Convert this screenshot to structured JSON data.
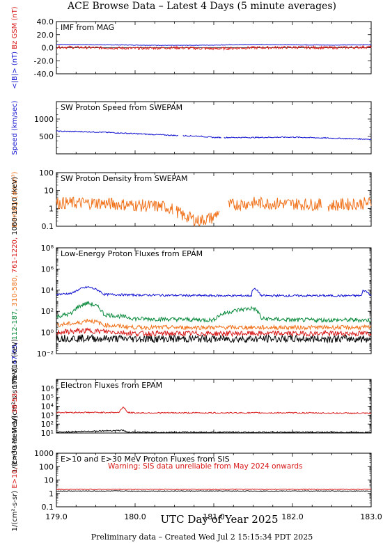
{
  "page_title": "ACE Browse Data – Latest 4 Days (5 minute averages)",
  "footer": "Preliminary data – Created Wed Jul  2 15:15:34 PDT 2025",
  "x_axis": {
    "label": "UTC Day of Year 2025",
    "range": [
      179.0,
      183.0
    ],
    "ticks": [
      "179.0",
      "180.0",
      "181.0",
      "182.0",
      "183.0"
    ]
  },
  "colors": {
    "blue": "#1010d0",
    "red": "#d81818",
    "green": "#0a8a3c",
    "orange": "#f07018",
    "black": "#000000"
  },
  "chart_data": [
    {
      "type": "line",
      "title": "IMF from MAG",
      "ylabel_parts": [
        {
          "text": "<|B|>",
          "units": "(nT)",
          "color": "#1010d0"
        },
        {
          "text": "Bz GSM",
          "units": "(nT)",
          "color": "#d81818"
        }
      ],
      "yscale": "linear",
      "ylim": [
        -40,
        40
      ],
      "yticks": [
        "-40.0",
        "-20.0",
        "0.0",
        "20.0",
        "40.0"
      ],
      "zero_line": true,
      "series": [
        {
          "name": "<|B|>",
          "color": "#1010d0",
          "x": [
            179.0,
            179.5,
            180.0,
            180.5,
            181.0,
            181.5,
            182.0,
            182.5,
            183.0
          ],
          "values": [
            5,
            4.5,
            4,
            3.5,
            4,
            5,
            4.5,
            4,
            4.5
          ],
          "noise": 0.4
        },
        {
          "name": "Bz GSM",
          "color": "#d81818",
          "x": [
            179.0,
            179.5,
            180.0,
            180.5,
            181.0,
            181.5,
            182.0,
            182.5,
            183.0
          ],
          "values": [
            1,
            0,
            -1,
            0,
            -1.5,
            0,
            0.5,
            0,
            1
          ],
          "noise": 2
        }
      ]
    },
    {
      "type": "line",
      "title": "SW Proton Speed from SWEPAM",
      "ylabel_parts": [
        {
          "text": "Speed",
          "units": "(km/sec)",
          "color": "#1010d0"
        }
      ],
      "yscale": "linear",
      "ylim": [
        0,
        1500
      ],
      "yticks": [
        "500",
        "1000"
      ],
      "ytick_values": [
        500,
        1000
      ],
      "series": [
        {
          "name": "Speed",
          "color": "#1010d0",
          "x": [
            179.0,
            179.3,
            179.6,
            180.0,
            180.5,
            180.8,
            181.0,
            181.5,
            182.0,
            182.5,
            183.0
          ],
          "values": [
            650,
            640,
            620,
            580,
            530,
            510,
            470,
            470,
            480,
            450,
            420
          ],
          "noise": 15,
          "gaps": [
            [
              180.55,
              180.6
            ],
            [
              181.1,
              181.13
            ]
          ]
        }
      ]
    },
    {
      "type": "line",
      "title": "SW Proton Density from SWEPAM",
      "ylabel_parts": [
        {
          "text": "Density",
          "units": "(#/cm³)",
          "color": "#f07018"
        }
      ],
      "yscale": "log",
      "ylim": [
        0.1,
        100
      ],
      "yticks": [
        "0.1",
        "1",
        "10",
        "100"
      ],
      "ytick_values": [
        0.1,
        1,
        10,
        100
      ],
      "series": [
        {
          "name": "Density",
          "color": "#f07018",
          "x": [
            179.0,
            179.5,
            180.0,
            180.4,
            180.6,
            180.8,
            181.0,
            181.2,
            181.5,
            182.0,
            182.5,
            183.0
          ],
          "values": [
            2.0,
            2.0,
            1.5,
            1.2,
            0.4,
            0.2,
            0.3,
            1.5,
            2.0,
            1.8,
            1.5,
            2.0
          ],
          "noise": 0.35,
          "gaps": [
            [
              180.48,
              180.52
            ],
            [
              181.07,
              181.18
            ],
            [
              182.38,
              182.45
            ]
          ]
        }
      ]
    },
    {
      "type": "line",
      "title": "Low-Energy Proton Fluxes from EPAM",
      "ylabel_parts": [
        {
          "text": "1/(cm²-s-sr-MeV)",
          "color": "#000000"
        },
        {
          "text": "47-65,",
          "color": "#1010d0"
        },
        {
          "text": "112-187,",
          "color": "#0a8a3c"
        },
        {
          "text": "310-580,",
          "color": "#f07018"
        },
        {
          "text": "761-1220,",
          "color": "#d81818"
        },
        {
          "text": "1060-1910 (keV)",
          "color": "#000000"
        }
      ],
      "yscale": "log",
      "ylim": [
        0.01,
        100000000
      ],
      "yticks": [
        "10⁻²",
        "10⁰",
        "10²",
        "10⁴",
        "10⁶",
        "10⁸"
      ],
      "ytick_values": [
        0.01,
        1,
        100,
        10000,
        1000000,
        100000000
      ],
      "series": [
        {
          "name": "47-65 keV",
          "color": "#1010d0",
          "x": [
            179.0,
            179.2,
            179.4,
            179.6,
            180.0,
            181.0,
            181.48,
            181.5,
            181.6,
            182.0,
            182.88,
            182.9,
            183.0
          ],
          "values": [
            4000,
            5000,
            20000,
            4000,
            3500,
            3000,
            3000,
            15000,
            3000,
            3000,
            3000,
            10000,
            3000
          ],
          "noise": 0.1
        },
        {
          "name": "112-187 keV",
          "color": "#0a8a3c",
          "x": [
            179.0,
            179.2,
            179.4,
            179.6,
            180.0,
            181.0,
            181.5,
            181.6,
            182.0,
            183.0
          ],
          "values": [
            30,
            60,
            600,
            50,
            20,
            15,
            200,
            20,
            15,
            15
          ],
          "noise": 0.2
        },
        {
          "name": "310-580 keV",
          "color": "#f07018",
          "x": [
            179.0,
            179.3,
            179.4,
            179.6,
            180.0,
            181.0,
            182.0,
            183.0
          ],
          "values": [
            5,
            8,
            15,
            5,
            3,
            3,
            3,
            3
          ],
          "noise": 0.2
        },
        {
          "name": "761-1220 keV",
          "color": "#d81818",
          "x": [
            179.0,
            179.4,
            180.0,
            181.0,
            182.0,
            183.0
          ],
          "values": [
            1.0,
            1.5,
            0.8,
            0.8,
            0.8,
            0.8
          ],
          "noise": 0.25
        },
        {
          "name": "1060-1910 keV",
          "color": "#000000",
          "x": [
            179.0,
            180.0,
            181.0,
            182.0,
            183.0
          ],
          "values": [
            0.3,
            0.25,
            0.25,
            0.25,
            0.25
          ],
          "noise": 0.35
        }
      ]
    },
    {
      "type": "line",
      "title": "Electron Fluxes from EPAM",
      "ylabel_parts": [
        {
          "text": "1/(cm²-s-sr-MeV)",
          "color": "#000000"
        },
        {
          "text": "38-53,",
          "color": "#d81818"
        },
        {
          "text": "175-315 (keV)",
          "color": "#000000"
        }
      ],
      "yscale": "log",
      "ylim": [
        10,
        10000000
      ],
      "yticks": [
        "10¹",
        "10²",
        "10³",
        "10⁴",
        "10⁵",
        "10⁶"
      ],
      "ytick_values": [
        10,
        100,
        1000,
        10000,
        100000,
        1000000
      ],
      "series": [
        {
          "name": "38-53 keV",
          "color": "#d81818",
          "x": [
            179.0,
            179.8,
            179.85,
            179.9,
            180.0,
            181.0,
            182.0,
            183.0
          ],
          "values": [
            2000,
            2000,
            8000,
            2000,
            1800,
            1800,
            1800,
            1600
          ],
          "noise": 0.07
        },
        {
          "name": "175-315 keV",
          "color": "#000000",
          "x": [
            179.0,
            179.85,
            179.9,
            180.0,
            181.0,
            182.0,
            183.0
          ],
          "values": [
            12,
            20,
            12,
            12,
            12,
            12,
            12
          ],
          "noise": 0.07
        }
      ]
    },
    {
      "type": "line",
      "title": "E>10 and E>30 MeV Proton Fluxes from SIS",
      "annotation": "Warning: SIS data unreliable from May 2024 onwards",
      "ylabel_parts": [
        {
          "text": "1/(cm²-s-sr)",
          "color": "#000000"
        },
        {
          "text": "E>10,",
          "color": "#d81818"
        },
        {
          "text": "E>30 MeV",
          "color": "#000000"
        }
      ],
      "yscale": "log",
      "ylim": [
        0.1,
        1000
      ],
      "yticks": [
        "0.1",
        "1",
        "10",
        "100",
        "1000"
      ],
      "ytick_values": [
        0.1,
        1,
        10,
        100,
        1000
      ],
      "series": [
        {
          "name": "E>10 MeV",
          "color": "#d81818",
          "x": [
            179.0,
            183.0
          ],
          "values": [
            2.0,
            2.0
          ],
          "noise": 0.03
        },
        {
          "name": "E>30 MeV",
          "color": "#000000",
          "x": [
            179.0,
            183.0
          ],
          "values": [
            1.5,
            1.5
          ],
          "noise": 0.03
        }
      ]
    }
  ]
}
